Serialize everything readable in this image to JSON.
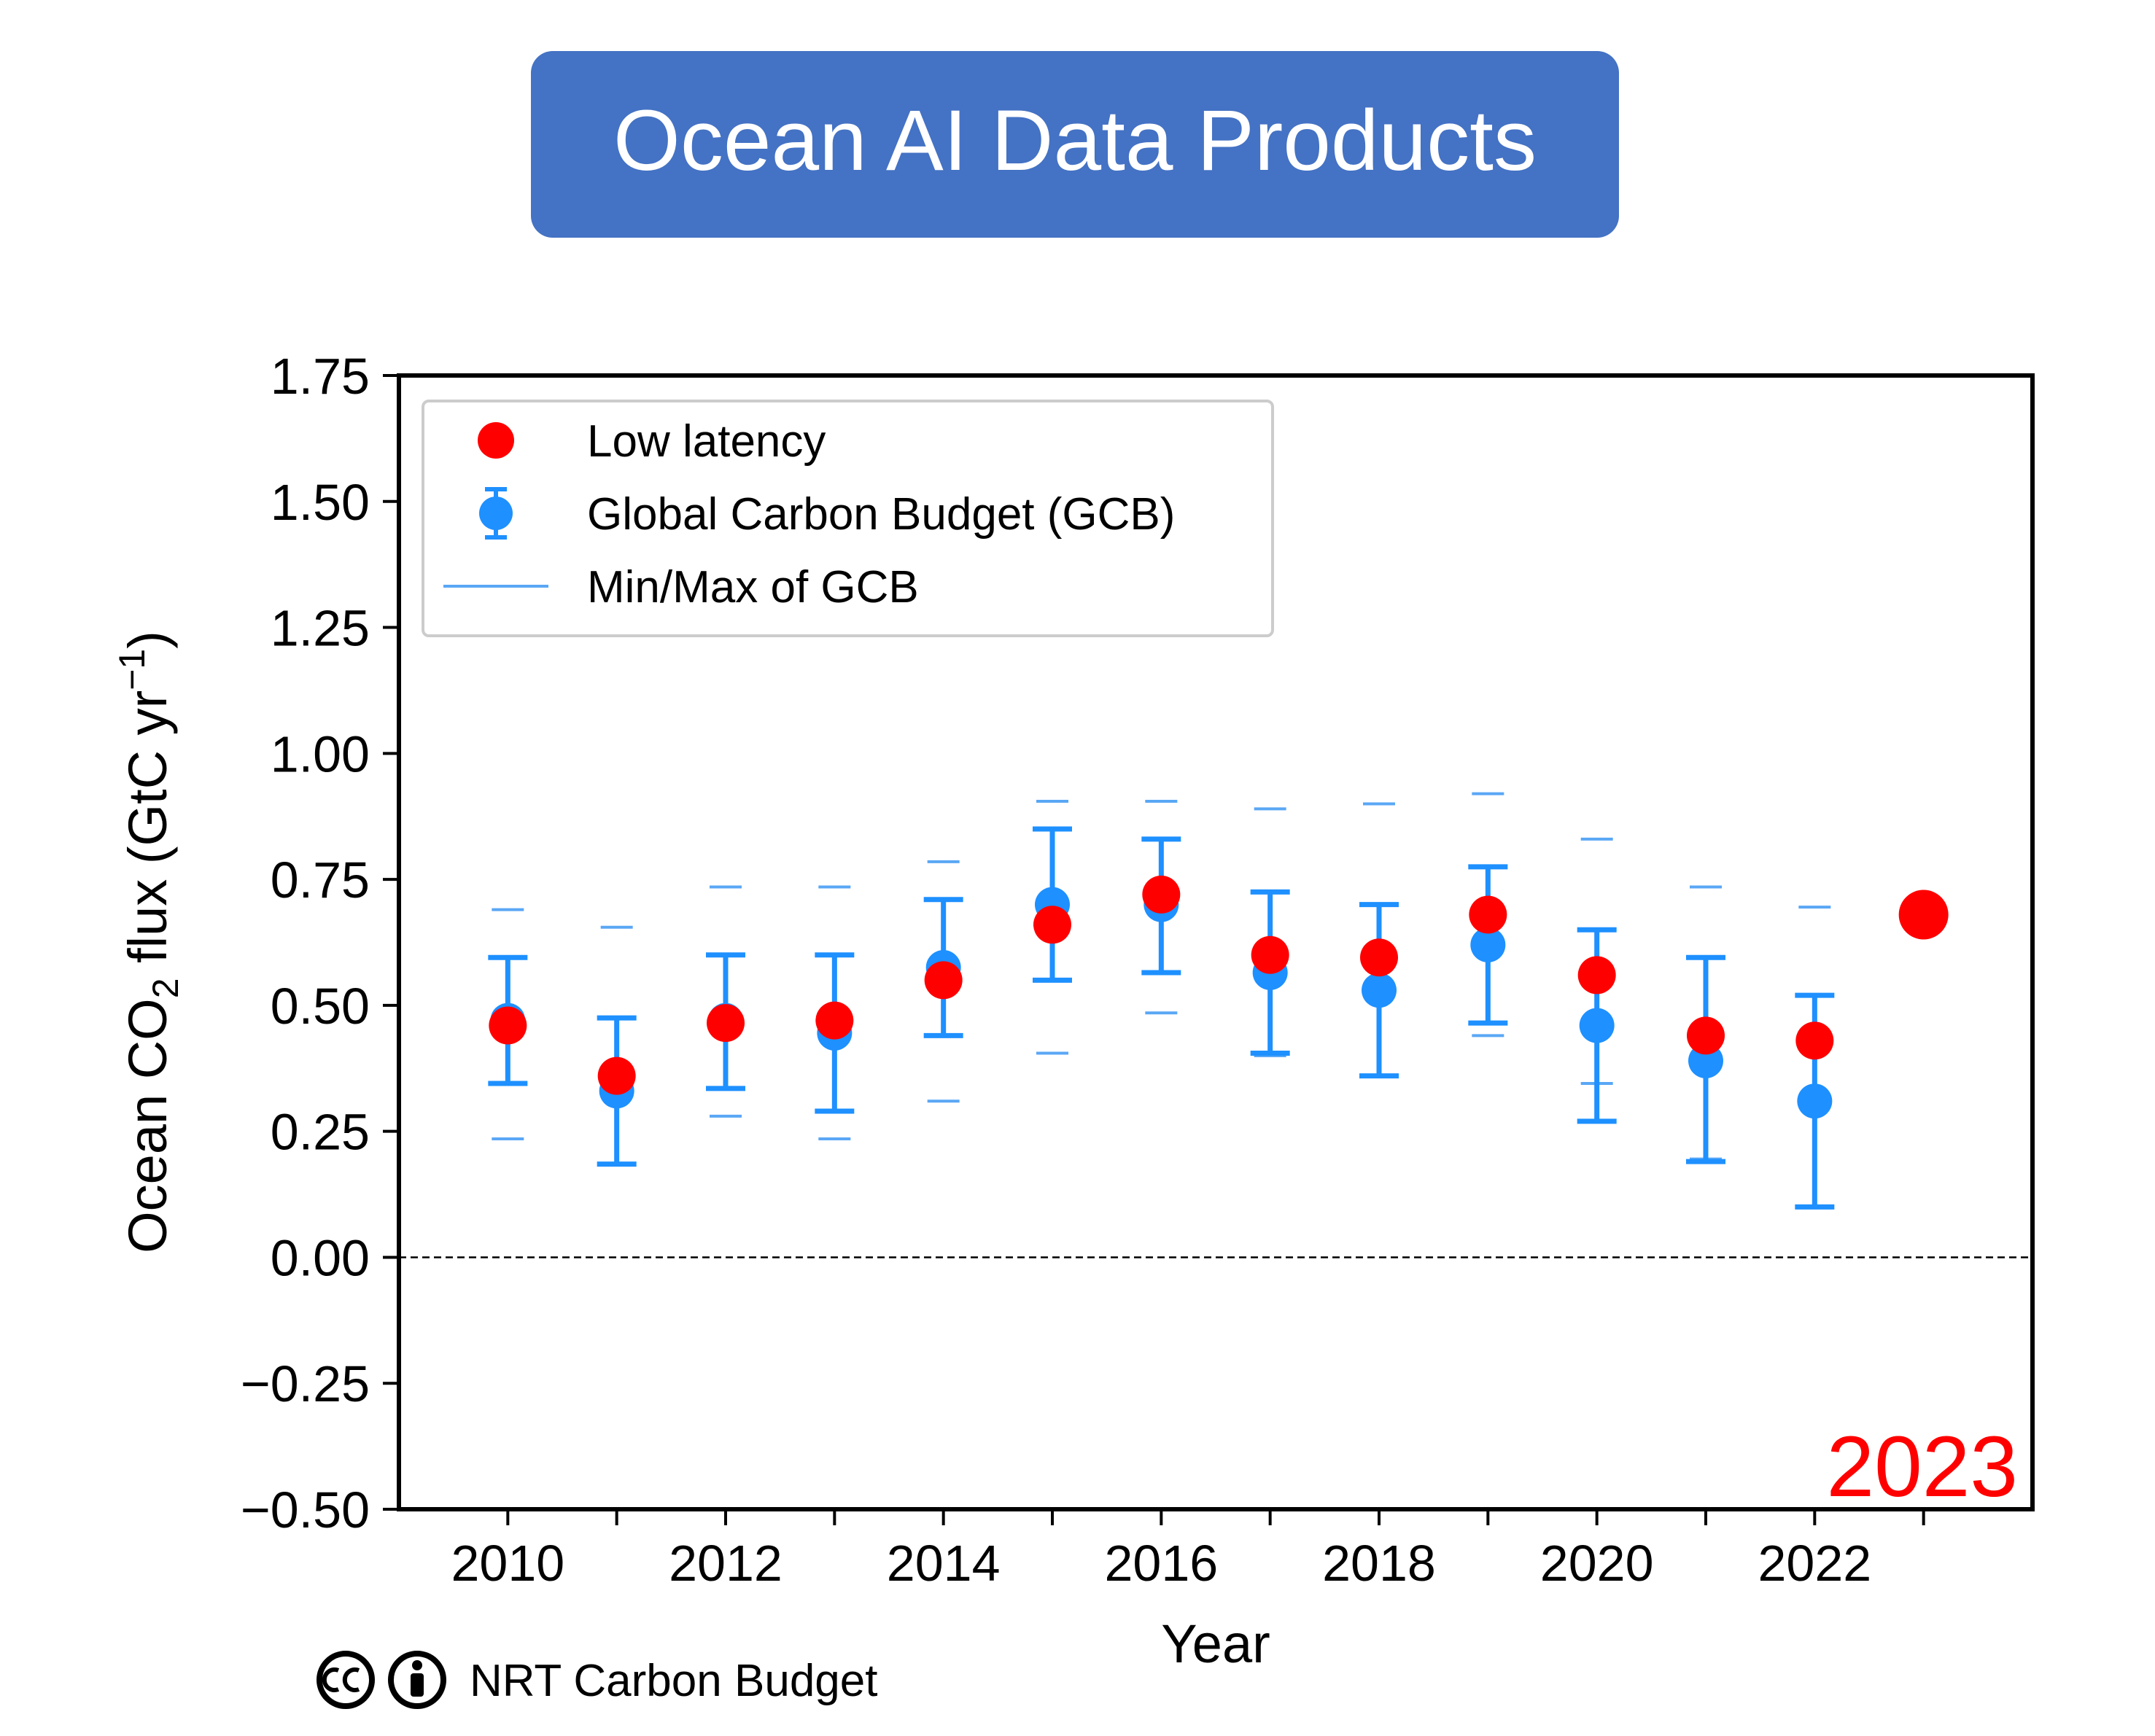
{
  "title_badge": {
    "text": "Ocean AI Data Products",
    "fill": "#4472c4",
    "text_color": "#ffffff"
  },
  "footer": {
    "license_text": "NRT Carbon Budget",
    "license_icons": [
      "cc-icon",
      "attribution-icon"
    ]
  },
  "chart_data": {
    "type": "scatter",
    "title": "",
    "xlabel": "Year",
    "ylabel": "Ocean CO₂ flux (GtC yr⁻¹)",
    "ylabel_parts": {
      "pre": "Ocean CO",
      "sub": "2",
      "mid": " flux (GtC yr",
      "sup": "−1",
      "post": ")"
    },
    "xlim": [
      2009.0,
      2024.0
    ],
    "ylim": [
      -0.5,
      1.75
    ],
    "x_ticks": [
      2010,
      2011,
      2012,
      2013,
      2014,
      2015,
      2016,
      2017,
      2018,
      2019,
      2020,
      2021,
      2022,
      2023
    ],
    "x_tick_labels": [
      "2010",
      "",
      "2012",
      "",
      "2014",
      "",
      "2016",
      "",
      "2018",
      "",
      "2020",
      "",
      "2022",
      ""
    ],
    "y_ticks": [
      -0.5,
      -0.25,
      0.0,
      0.25,
      0.5,
      0.75,
      1.0,
      1.25,
      1.5,
      1.75
    ],
    "y_tick_labels": [
      "−0.50",
      "−0.25",
      "0.00",
      "0.25",
      "0.50",
      "0.75",
      "1.00",
      "1.25",
      "1.50",
      "1.75"
    ],
    "zero_line": {
      "y": 0.0,
      "style": "dashed"
    },
    "grid": false,
    "legend": {
      "placement": "upper-left",
      "entries": [
        "Low latency",
        "Global Carbon Budget (GCB)",
        "Min/Max of GCB"
      ]
    },
    "annotation": {
      "text": "2023",
      "placement": "bottom-right",
      "color": "#ff0000"
    },
    "series": [
      {
        "name": "Low latency",
        "color": "#ff0000",
        "x": [
          2010,
          2011,
          2012,
          2013,
          2014,
          2015,
          2016,
          2017,
          2018,
          2019,
          2020,
          2021,
          2022,
          2023
        ],
        "y": [
          0.46,
          0.36,
          0.465,
          0.47,
          0.55,
          0.66,
          0.72,
          0.6,
          0.595,
          0.68,
          0.56,
          0.44,
          0.43,
          0.68
        ],
        "highlight_last": true
      },
      {
        "name": "Global Carbon Budget (GCB)",
        "color": "#1e90ff",
        "x": [
          2010,
          2011,
          2012,
          2013,
          2014,
          2015,
          2016,
          2017,
          2018,
          2019,
          2020,
          2021,
          2022
        ],
        "y": [
          0.47,
          0.33,
          0.47,
          0.445,
          0.575,
          0.7,
          0.7,
          0.565,
          0.53,
          0.62,
          0.46,
          0.39,
          0.31
        ],
        "err_low": [
          0.345,
          0.185,
          0.335,
          0.29,
          0.44,
          0.55,
          0.565,
          0.405,
          0.36,
          0.465,
          0.27,
          0.19,
          0.1
        ],
        "err_high": [
          0.595,
          0.475,
          0.6,
          0.6,
          0.71,
          0.85,
          0.83,
          0.725,
          0.7,
          0.775,
          0.65,
          0.595,
          0.52
        ]
      },
      {
        "name": "Min/Max of GCB",
        "color": "#5aa7f5",
        "x": [
          2010,
          2011,
          2012,
          2013,
          2014,
          2015,
          2016,
          2017,
          2018,
          2019,
          2020,
          2021,
          2022
        ],
        "min": [
          0.235,
          0.185,
          0.28,
          0.235,
          0.31,
          0.405,
          0.485,
          0.4,
          0.36,
          0.44,
          0.345,
          0.195,
          0.1
        ],
        "max": [
          0.69,
          0.655,
          0.735,
          0.735,
          0.785,
          0.905,
          0.905,
          0.89,
          0.9,
          0.92,
          0.83,
          0.735,
          0.695
        ]
      }
    ]
  }
}
